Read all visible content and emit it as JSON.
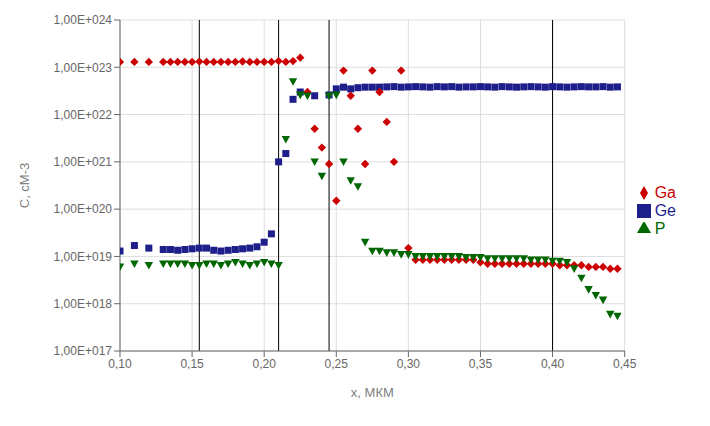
{
  "chart_data": {
    "type": "scatter",
    "xlabel": "x, МКМ",
    "ylabel": "C, сМ-3",
    "log": "y",
    "grid": true,
    "legend": "right",
    "xlim": [
      0.1,
      0.45
    ],
    "ylim": [
      1e+17,
      1e+24
    ],
    "xticks": [
      {
        "value": 0.1,
        "label": "0,10"
      },
      {
        "value": 0.15,
        "label": "0,15"
      },
      {
        "value": 0.2,
        "label": "0,20"
      },
      {
        "value": 0.25,
        "label": "0,25"
      },
      {
        "value": 0.3,
        "label": "0,30"
      },
      {
        "value": 0.35,
        "label": "0,35"
      },
      {
        "value": 0.4,
        "label": "0,40"
      },
      {
        "value": 0.45,
        "label": "0,45"
      }
    ],
    "yticks": [
      {
        "value": 1e+17,
        "label": "1,00E+017"
      },
      {
        "value": 1e+18,
        "label": "1,00E+018"
      },
      {
        "value": 1e+19,
        "label": "1,00E+019"
      },
      {
        "value": 1e+20,
        "label": "1,00E+020"
      },
      {
        "value": 1e+21,
        "label": "1,00E+021"
      },
      {
        "value": 1e+22,
        "label": "1,00E+022"
      },
      {
        "value": 1e+23,
        "label": "1,00E+023"
      },
      {
        "value": 1e+24,
        "label": "1,00E+024"
      }
    ],
    "vlines": [
      0.155,
      0.21,
      0.245,
      0.4
    ],
    "series": [
      {
        "name": "Ge",
        "color": "#1F1F8C",
        "marker": "square",
        "x": [
          0.1,
          0.11,
          0.12,
          0.13,
          0.135,
          0.14,
          0.145,
          0.15,
          0.155,
          0.16,
          0.165,
          0.17,
          0.175,
          0.18,
          0.185,
          0.19,
          0.195,
          0.2,
          0.205,
          0.21,
          0.215,
          0.22,
          0.225,
          0.235,
          0.245,
          0.25,
          0.255,
          0.26,
          0.265,
          0.27,
          0.275,
          0.28,
          0.285,
          0.29,
          0.295,
          0.3,
          0.305,
          0.31,
          0.315,
          0.32,
          0.325,
          0.33,
          0.335,
          0.34,
          0.345,
          0.35,
          0.355,
          0.36,
          0.365,
          0.37,
          0.375,
          0.38,
          0.385,
          0.39,
          0.395,
          0.4,
          0.405,
          0.41,
          0.415,
          0.42,
          0.425,
          0.43,
          0.435,
          0.44,
          0.445
        ],
        "values": [
          1.3e+19,
          1.7e+19,
          1.5e+19,
          1.4e+19,
          1.4e+19,
          1.35e+19,
          1.4e+19,
          1.45e+19,
          1.5e+19,
          1.5e+19,
          1.35e+19,
          1.3e+19,
          1.35e+19,
          1.4e+19,
          1.45e+19,
          1.5e+19,
          1.6e+19,
          2e+19,
          3e+19,
          1e+21,
          1.5e+21,
          2.1e+22,
          3e+22,
          2.5e+22,
          2.6e+22,
          3.5e+22,
          3.8e+22,
          3.5e+22,
          3.7e+22,
          3.8e+22,
          3.8e+22,
          3.8e+22,
          3.85e+22,
          3.9e+22,
          3.8e+22,
          3.85e+22,
          3.9e+22,
          3.85e+22,
          3.8e+22,
          3.9e+22,
          3.85e+22,
          3.9e+22,
          3.8e+22,
          3.85e+22,
          3.85e+22,
          3.9e+22,
          3.85e+22,
          3.8e+22,
          3.9e+22,
          3.85e+22,
          3.8e+22,
          3.85e+22,
          3.9e+22,
          3.85e+22,
          3.8e+22,
          3.9e+22,
          3.85e+22,
          3.8e+22,
          3.85e+22,
          3.9e+22,
          3.85e+22,
          3.85e+22,
          3.9e+22,
          3.8e+22,
          3.85e+22
        ]
      },
      {
        "name": "Ga",
        "color": "#CC0000",
        "marker": "diamond",
        "x": [
          0.1,
          0.11,
          0.12,
          0.13,
          0.135,
          0.14,
          0.145,
          0.15,
          0.155,
          0.16,
          0.165,
          0.17,
          0.175,
          0.18,
          0.185,
          0.19,
          0.195,
          0.2,
          0.205,
          0.21,
          0.215,
          0.22,
          0.225,
          0.23,
          0.235,
          0.24,
          0.245,
          0.25,
          0.255,
          0.26,
          0.265,
          0.27,
          0.275,
          0.28,
          0.285,
          0.29,
          0.295,
          0.3,
          0.305,
          0.31,
          0.315,
          0.32,
          0.325,
          0.33,
          0.335,
          0.34,
          0.345,
          0.35,
          0.355,
          0.36,
          0.365,
          0.37,
          0.375,
          0.38,
          0.385,
          0.39,
          0.395,
          0.4,
          0.405,
          0.41,
          0.415,
          0.42,
          0.425,
          0.43,
          0.435,
          0.44,
          0.445
        ],
        "values": [
          1.3e+23,
          1.3e+23,
          1.3e+23,
          1.3e+23,
          1.3e+23,
          1.3e+23,
          1.3e+23,
          1.3e+23,
          1.32e+23,
          1.3e+23,
          1.3e+23,
          1.3e+23,
          1.3e+23,
          1.3e+23,
          1.33e+23,
          1.3e+23,
          1.3e+23,
          1.3e+23,
          1.3e+23,
          1.35e+23,
          1.3e+23,
          1.35e+23,
          1.6e+23,
          3e+22,
          5e+21,
          2e+21,
          9e+20,
          1.5e+20,
          8.5e+22,
          2.5e+22,
          5e+21,
          9e+20,
          8.5e+22,
          3e+22,
          7e+21,
          1e+21,
          8.5e+22,
          1.5e+19,
          8.5e+18,
          8.5e+18,
          8.5e+18,
          8.5e+18,
          8.5e+18,
          8.5e+18,
          8.5e+18,
          8.5e+18,
          8.5e+18,
          7.5e+18,
          7e+18,
          7e+18,
          7e+18,
          7e+18,
          7e+18,
          7e+18,
          7e+18,
          7e+18,
          7e+18,
          7e+18,
          6.5e+18,
          6.5e+18,
          6.5e+18,
          6.5e+18,
          6e+18,
          6e+18,
          6e+18,
          5.5e+18,
          5.5e+18
        ]
      },
      {
        "name": "P",
        "color": "#006600",
        "marker": "triangle-down",
        "x": [
          0.1,
          0.11,
          0.12,
          0.13,
          0.135,
          0.14,
          0.145,
          0.15,
          0.155,
          0.16,
          0.165,
          0.17,
          0.175,
          0.18,
          0.185,
          0.19,
          0.195,
          0.2,
          0.205,
          0.21,
          0.215,
          0.22,
          0.225,
          0.23,
          0.235,
          0.24,
          0.245,
          0.25,
          0.255,
          0.26,
          0.265,
          0.27,
          0.275,
          0.28,
          0.285,
          0.29,
          0.295,
          0.3,
          0.305,
          0.31,
          0.315,
          0.32,
          0.325,
          0.33,
          0.335,
          0.34,
          0.345,
          0.35,
          0.355,
          0.36,
          0.365,
          0.37,
          0.375,
          0.38,
          0.385,
          0.39,
          0.395,
          0.4,
          0.405,
          0.41,
          0.415,
          0.42,
          0.425,
          0.43,
          0.435,
          0.44,
          0.445
        ],
        "values": [
          6e+18,
          7e+18,
          6.5e+18,
          7e+18,
          7e+18,
          7e+18,
          7e+18,
          6.5e+18,
          6.5e+18,
          7e+18,
          7e+18,
          6.5e+18,
          7e+18,
          7.5e+18,
          7e+18,
          6.5e+18,
          7e+18,
          7.5e+18,
          7e+18,
          6.5e+18,
          3e+21,
          5e+22,
          2.6e+22,
          2.5e+22,
          1e+21,
          5e+20,
          2.5e+22,
          2.6e+22,
          1e+21,
          4e+20,
          3e+20,
          2e+19,
          1.3e+19,
          1.3e+19,
          1.2e+19,
          1.2e+19,
          1.1e+19,
          1.1e+19,
          1e+19,
          1e+19,
          1e+19,
          1e+19,
          1e+19,
          1e+19,
          1e+19,
          9.5e+18,
          9.5e+18,
          9.5e+18,
          9e+18,
          9e+18,
          9e+18,
          9e+18,
          9e+18,
          9e+18,
          8.5e+18,
          8.5e+18,
          8.5e+18,
          8e+18,
          8e+18,
          7.5e+18,
          5.5e+18,
          3.5e+18,
          2e+18,
          1.5e+18,
          1.2e+18,
          6e+17,
          5.5e+17
        ]
      }
    ]
  }
}
